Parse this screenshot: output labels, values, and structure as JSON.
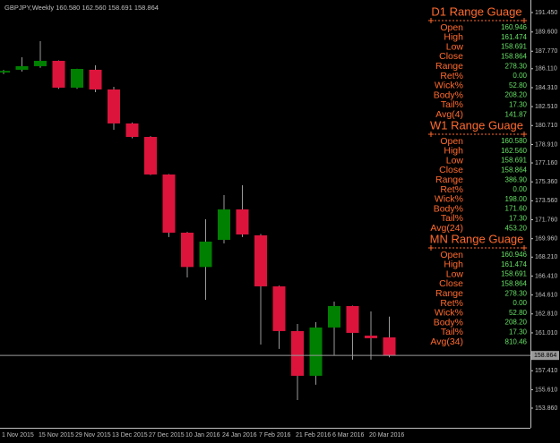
{
  "chart_data": {
    "type": "candlestick",
    "title": "GBPJPY,Weekly  160.580 162.560 158.691 158.864",
    "categories": [
      "1 Nov 2015",
      null,
      "15 Nov 2015",
      null,
      "29 Nov 2015",
      null,
      "13 Dec 2015",
      null,
      "27 Dec 2015",
      null,
      "10 Jan 2016",
      null,
      "24 Jan 2016",
      null,
      "7 Feb 2016",
      null,
      "21 Feb 2016",
      null,
      "6 Mar 2016",
      null,
      "20 Mar 2016",
      null
    ],
    "open": [
      185.75,
      186.01,
      186.35,
      186.86,
      184.31,
      186.01,
      184.14,
      180.91,
      179.63,
      176.06,
      170.53,
      167.27,
      169.85,
      172.74,
      170.28,
      165.43,
      161.18,
      156.93,
      161.52,
      163.56,
      160.75,
      160.58
    ],
    "high": [
      186.0,
      187.2,
      188.73,
      186.9,
      186.1,
      186.43,
      184.39,
      181.0,
      179.7,
      176.1,
      170.6,
      171.81,
      174.1,
      175.04,
      170.4,
      165.5,
      161.86,
      162.03,
      163.98,
      163.6,
      163.05,
      162.56
    ],
    "low": [
      185.6,
      185.84,
      186.2,
      184.2,
      184.2,
      183.88,
      180.31,
      179.5,
      176.0,
      170.11,
      166.28,
      164.15,
      169.51,
      170.11,
      159.9,
      159.48,
      154.63,
      156.08,
      158.9,
      158.46,
      158.46,
      158.691
    ],
    "close": [
      185.9,
      186.35,
      186.86,
      184.31,
      186.09,
      184.14,
      180.91,
      179.63,
      176.06,
      170.53,
      167.27,
      169.68,
      172.74,
      170.36,
      165.43,
      161.18,
      156.93,
      161.52,
      163.56,
      161.01,
      160.5,
      158.864
    ],
    "ylim": [
      151.99,
      192.64
    ],
    "yticks": [
      {
        "value": 191.45,
        "label": "191.450"
      },
      {
        "value": 189.6,
        "label": "189.600"
      },
      {
        "value": 187.77,
        "label": "187.770"
      },
      {
        "value": 186.11,
        "label": "186.110"
      },
      {
        "value": 184.31,
        "label": "184.310"
      },
      {
        "value": 182.51,
        "label": "182.510"
      },
      {
        "value": 180.71,
        "label": "180.710"
      },
      {
        "value": 178.91,
        "label": "178.910"
      },
      {
        "value": 177.16,
        "label": "177.160"
      },
      {
        "value": 175.36,
        "label": "175.360"
      },
      {
        "value": 173.56,
        "label": "173.560"
      },
      {
        "value": 171.76,
        "label": "171.760"
      },
      {
        "value": 169.96,
        "label": "169.960"
      },
      {
        "value": 168.21,
        "label": "168.210"
      },
      {
        "value": 166.41,
        "label": "166.410"
      },
      {
        "value": 164.61,
        "label": "164.610"
      },
      {
        "value": 162.81,
        "label": "162.810"
      },
      {
        "value": 161.01,
        "label": "161.010"
      },
      {
        "value": 157.41,
        "label": "157.410"
      },
      {
        "value": 155.61,
        "label": "155.610"
      },
      {
        "value": 153.86,
        "label": "153.860"
      }
    ],
    "current_price": 158.864,
    "up_color": "#008000",
    "down_color": "#dc143c"
  },
  "panel": {
    "sections": [
      {
        "title": "D1 Range Guage",
        "rows": [
          [
            "Open",
            "160.946"
          ],
          [
            "High",
            "161.474"
          ],
          [
            "Low",
            "158.691"
          ],
          [
            "Close",
            "158.864"
          ],
          [
            "Range",
            "278.30"
          ],
          [
            "Ret%",
            "0.00"
          ],
          [
            "Wick%",
            "52.80"
          ],
          [
            "Body%",
            "208.20"
          ],
          [
            "Tail%",
            "17.30"
          ],
          [
            "Avg(4)",
            "141.87"
          ]
        ]
      },
      {
        "title": "W1  Range Guage",
        "rows": [
          [
            "Open",
            "160.580"
          ],
          [
            "High",
            "162.560"
          ],
          [
            "Low",
            "158.691"
          ],
          [
            "Close",
            "158.864"
          ],
          [
            "Range",
            "386.90"
          ],
          [
            "Ret%",
            "0.00"
          ],
          [
            "Wick%",
            "198.00"
          ],
          [
            "Body%",
            "171.60"
          ],
          [
            "Tail%",
            "17.30"
          ],
          [
            "Avg(24)",
            "453.20"
          ]
        ]
      },
      {
        "title": "MN Range Guage",
        "rows": [
          [
            "Open",
            "160.946"
          ],
          [
            "High",
            "161.474"
          ],
          [
            "Low",
            "158.691"
          ],
          [
            "Close",
            "158.864"
          ],
          [
            "Range",
            "278.30"
          ],
          [
            "Ret%",
            "0.00"
          ],
          [
            "Wick%",
            "52.80"
          ],
          [
            "Body%",
            "208.20"
          ],
          [
            "Tail%",
            "17.30"
          ],
          [
            "Avg(34)",
            "810.46"
          ]
        ]
      }
    ]
  }
}
